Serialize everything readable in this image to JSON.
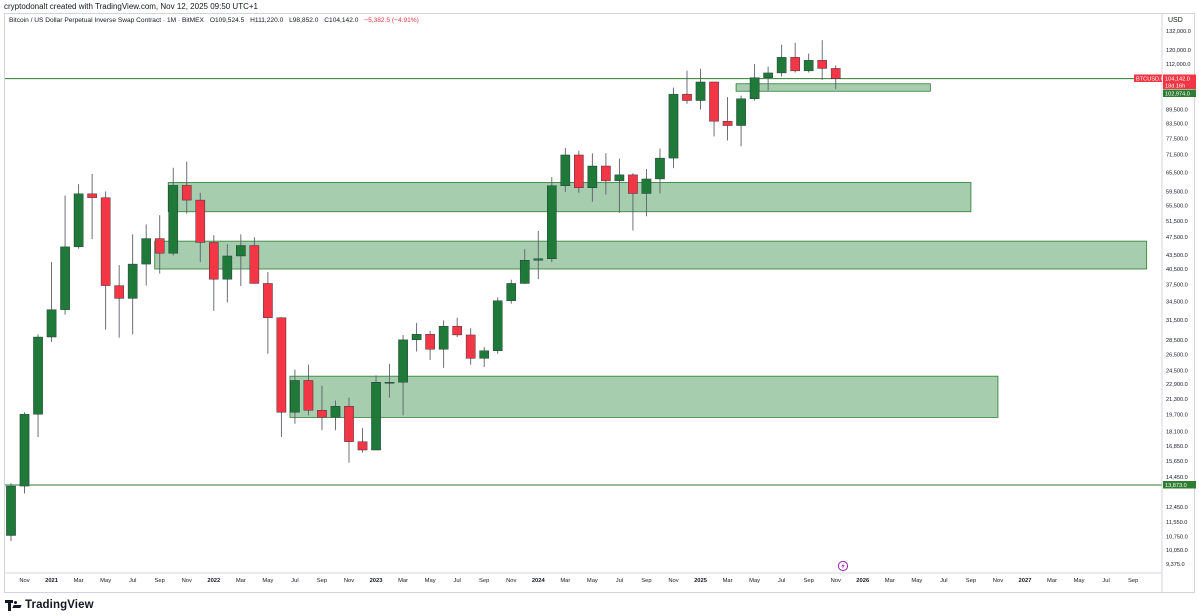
{
  "header": {
    "attribution": "cryptodonalt created with TradingView.com, Nov 12, 2025 09:50 UTC+1"
  },
  "legend": {
    "title": "Bitcoin / US Dollar Perpetual Inverse Swap Contract · 1M · BitMEX",
    "open": "O109,524.5",
    "high": "H111,220.0",
    "low": "L98,852.0",
    "close": "C104,142.0",
    "change": "−5,382.5 (−4.91%)"
  },
  "axis": {
    "currency": "USD"
  },
  "footer": {
    "brand": "TradingView"
  },
  "colors": {
    "up": "#1f7a3a",
    "down": "#f23645",
    "zone_fill": "#a5cdae",
    "zone_border": "#2e7d32",
    "line": "#2e7d32",
    "grid_border": "#d1d4dc"
  },
  "icons": [
    "tradingview-logo-icon",
    "lightning-flag-icon"
  ],
  "chart_data": {
    "type": "candlestick",
    "title": "Bitcoin / US Dollar Perpetual Inverse Swap Contract · 1M · BitMEX",
    "xlabel": "",
    "ylabel": "",
    "y_scale": "log",
    "ylim": [
      9000,
      140000
    ],
    "xlim": [
      "2020-10",
      "2027-10"
    ],
    "grid": false,
    "y_ticks": [
      "132,000.0",
      "120,000.0",
      "112,000.0",
      "104,142.0",
      "102,974.0",
      "89,500.0",
      "83,500.0",
      "77,500.0",
      "71,500.0",
      "65,500.0",
      "59,500.0",
      "55,500.0",
      "51,500.0",
      "47,500.0",
      "43,500.0",
      "40,500.0",
      "37,500.0",
      "34,500.0",
      "31,500.0",
      "28,500.0",
      "26,500.0",
      "24,500.0",
      "22,900.0",
      "21,300.0",
      "19,700.0",
      "18,100.0",
      "16,850.0",
      "15,650.0",
      "14,450.0",
      "13,873.0",
      "12,450.0",
      "11,550.0",
      "10,750.0",
      "10,050.0",
      "9,375.0"
    ],
    "x_ticks": [
      "Nov",
      "2021",
      "Mar",
      "May",
      "Jul",
      "Sep",
      "Nov",
      "2022",
      "Mar",
      "May",
      "Jul",
      "Sep",
      "Nov",
      "2023",
      "Mar",
      "May",
      "Jul",
      "Sep",
      "Nov",
      "2024",
      "Mar",
      "May",
      "Jul",
      "Sep",
      "Nov",
      "2025",
      "Mar",
      "May",
      "Jul",
      "Sep",
      "Nov",
      "2026",
      "Mar",
      "May",
      "Jul",
      "Sep",
      "Nov",
      "2027",
      "Mar",
      "May",
      "Jul",
      "Sep"
    ],
    "price_labels": [
      {
        "text": "BTCUSD.P",
        "color": "#f23645"
      },
      {
        "text": "104,142.0",
        "color": "#f23645"
      },
      {
        "text": "18d 16h",
        "color": "#f23645"
      },
      {
        "text": "102,974.0",
        "color": "#2e7d32"
      },
      {
        "text": "13,873.0",
        "color": "#2e7d32"
      }
    ],
    "series": [
      {
        "fields": [
          "date",
          "open",
          "high",
          "low",
          "close"
        ],
        "values": [
          [
            "2020-10",
            10800,
            14000,
            10500,
            13800
          ],
          [
            "2020-11",
            13800,
            19900,
            13300,
            19700
          ],
          [
            "2020-12",
            19700,
            29300,
            17600,
            28900
          ],
          [
            "2021-01",
            28900,
            41900,
            28200,
            33100
          ],
          [
            "2021-02",
            33100,
            58300,
            32300,
            45200
          ],
          [
            "2021-03",
            45200,
            61700,
            44800,
            58800
          ],
          [
            "2021-04",
            58800,
            64900,
            47000,
            57700
          ],
          [
            "2021-05",
            57700,
            59500,
            30000,
            37300
          ],
          [
            "2021-06",
            37300,
            41300,
            28800,
            35000
          ],
          [
            "2021-07",
            35000,
            48100,
            29300,
            41500
          ],
          [
            "2021-08",
            41500,
            50500,
            37300,
            47100
          ],
          [
            "2021-09",
            47100,
            52900,
            39600,
            43800
          ],
          [
            "2021-10",
            43800,
            66900,
            43300,
            61300
          ],
          [
            "2021-11",
            61300,
            69000,
            53300,
            57000
          ],
          [
            "2021-12",
            57000,
            59100,
            41900,
            46200
          ],
          [
            "2022-01",
            46200,
            47900,
            32900,
            38500
          ],
          [
            "2022-02",
            38500,
            45800,
            34300,
            43200
          ],
          [
            "2022-03",
            43200,
            48100,
            37200,
            45500
          ],
          [
            "2022-04",
            45500,
            47400,
            37700,
            37700
          ],
          [
            "2022-05",
            37700,
            39900,
            26600,
            31800
          ],
          [
            "2022-06",
            31800,
            31900,
            17600,
            19900
          ],
          [
            "2022-07",
            19900,
            24600,
            18800,
            23300
          ],
          [
            "2022-08",
            23300,
            25200,
            19600,
            20100
          ],
          [
            "2022-09",
            20100,
            22700,
            18200,
            19400
          ],
          [
            "2022-10",
            19400,
            21100,
            18200,
            20500
          ],
          [
            "2022-11",
            20500,
            21400,
            15500,
            17200
          ],
          [
            "2022-12",
            17200,
            18400,
            16300,
            16500
          ],
          [
            "2023-01",
            16500,
            23900,
            16500,
            23100
          ],
          [
            "2023-02",
            23100,
            25300,
            21400,
            23100
          ],
          [
            "2023-03",
            23100,
            29200,
            19600,
            28500
          ],
          [
            "2023-04",
            28500,
            31000,
            26900,
            29300
          ],
          [
            "2023-05",
            29300,
            29800,
            25800,
            27200
          ],
          [
            "2023-06",
            27200,
            31400,
            24800,
            30500
          ],
          [
            "2023-07",
            30500,
            31800,
            28900,
            29200
          ],
          [
            "2023-08",
            29200,
            30200,
            25200,
            26000
          ],
          [
            "2023-09",
            26000,
            27500,
            24900,
            27000
          ],
          [
            "2023-10",
            27000,
            35200,
            26600,
            34600
          ],
          [
            "2023-11",
            34600,
            38400,
            34100,
            37700
          ],
          [
            "2023-12",
            37700,
            44700,
            37600,
            42300
          ],
          [
            "2024-01",
            42300,
            48900,
            38500,
            42600
          ],
          [
            "2024-02",
            42600,
            63900,
            41900,
            61200
          ],
          [
            "2024-03",
            61200,
            73800,
            59300,
            71300
          ],
          [
            "2024-04",
            71300,
            72800,
            59100,
            60600
          ],
          [
            "2024-05",
            60600,
            71900,
            56500,
            67500
          ],
          [
            "2024-06",
            67500,
            71900,
            58600,
            62700
          ],
          [
            "2024-07",
            62700,
            70000,
            53500,
            64600
          ],
          [
            "2024-08",
            64600,
            65100,
            49000,
            58900
          ],
          [
            "2024-09",
            58900,
            66500,
            52600,
            63300
          ],
          [
            "2024-10",
            63300,
            73600,
            58900,
            70200
          ],
          [
            "2024-11",
            70200,
            99600,
            66800,
            96400
          ],
          [
            "2024-12",
            96400,
            108300,
            91900,
            93400
          ],
          [
            "2025-01",
            93400,
            109300,
            89300,
            102400
          ],
          [
            "2025-02",
            102400,
            102500,
            78200,
            84300
          ],
          [
            "2025-03",
            84300,
            95000,
            76600,
            82500
          ],
          [
            "2025-04",
            82500,
            95700,
            74400,
            94200
          ],
          [
            "2025-05",
            94200,
            111900,
            93400,
            104600
          ],
          [
            "2025-06",
            104600,
            110500,
            98200,
            107100
          ],
          [
            "2025-07",
            107100,
            123200,
            105200,
            115700
          ],
          [
            "2025-08",
            115700,
            124400,
            107300,
            108200
          ],
          [
            "2025-09",
            108200,
            117900,
            107300,
            114000
          ],
          [
            "2025-10",
            114000,
            126000,
            103500,
            109500
          ],
          [
            "2025-11",
            109524.5,
            111220,
            98852,
            104142
          ]
        ]
      }
    ],
    "zones": [
      {
        "start": "2025-04",
        "end": "2026-06",
        "low": 97800,
        "high": 101500
      },
      {
        "start": "2021-10",
        "end": "2026-09",
        "low": 53800,
        "high": 62200
      },
      {
        "start": "2021-09",
        "end": "2027-10",
        "low": 40500,
        "high": 46500
      },
      {
        "start": "2022-07",
        "end": "2026-11",
        "low": 19400,
        "high": 23800
      }
    ],
    "horizontal_lines": [
      104142,
      13873
    ],
    "annotations": []
  }
}
